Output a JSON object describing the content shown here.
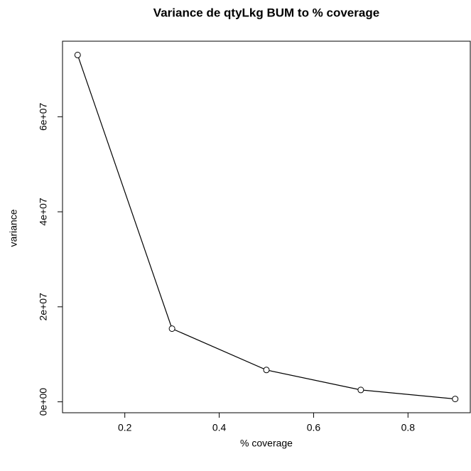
{
  "chart_data": {
    "type": "line",
    "title": "Variance de qtyLkg BUM to % coverage",
    "x_label": "% coverage",
    "y_label": "variance",
    "x": [
      0.1,
      0.3,
      0.5,
      0.7,
      0.9
    ],
    "series": [
      {
        "name": "variance",
        "color": "#000000",
        "values": [
          73000000,
          15400000,
          6700000,
          2500000,
          600000
        ]
      }
    ],
    "xlim": [
      0.068,
      0.932
    ],
    "xticks": [
      0.2,
      0.4,
      0.6,
      0.8
    ],
    "ylim": [
      -2300000,
      75900000
    ],
    "yticks": [
      {
        "value": 0,
        "label": "0e+00"
      },
      {
        "value": 20000000,
        "label": "2e+07"
      },
      {
        "value": 40000000,
        "label": "4e+07"
      },
      {
        "value": 60000000,
        "label": "6e+07"
      }
    ]
  }
}
